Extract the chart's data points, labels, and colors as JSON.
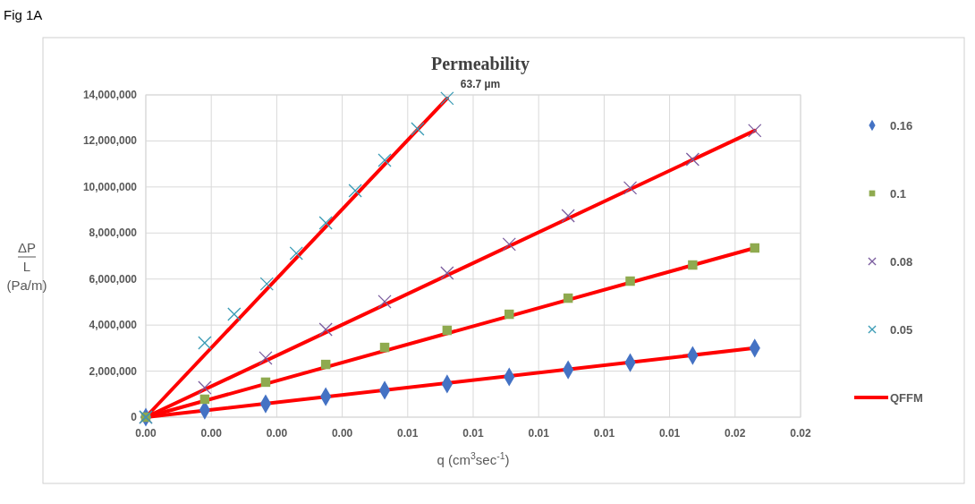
{
  "chart_data": {
    "type": "scatter",
    "title": "Permeability",
    "subtitle": "63.7 µm",
    "xlabel": "q (cm$^{3}$sec$^{-1}$)",
    "ylabel": "ΔP\nL\n(Pa/m)",
    "annotations": [
      "Fig 1A"
    ],
    "xlim": [
      0,
      0.0166667
    ],
    "ylim": [
      0,
      14000000
    ],
    "xticks": [
      {
        "value": 0,
        "label": "0.00"
      },
      {
        "value": 0.0016667,
        "label": "0.00"
      },
      {
        "value": 0.0033333,
        "label": "0.00"
      },
      {
        "value": 0.005,
        "label": "0.00"
      },
      {
        "value": 0.0066667,
        "label": "0.01"
      },
      {
        "value": 0.0083333,
        "label": "0.01"
      },
      {
        "value": 0.01,
        "label": "0.01"
      },
      {
        "value": 0.0116667,
        "label": "0.01"
      },
      {
        "value": 0.0133333,
        "label": "0.01"
      },
      {
        "value": 0.015,
        "label": "0.02"
      },
      {
        "value": 0.0166667,
        "label": "0.02"
      }
    ],
    "yticks": [
      0,
      {
        "value": 2000000,
        "label": "2,000,000"
      },
      {
        "value": 4000000,
        "label": "4,000,000"
      },
      {
        "value": 6000000,
        "label": "6,000,000"
      },
      {
        "value": 8000000,
        "label": "8,000,000"
      },
      {
        "value": 10000000,
        "label": "10,000,000"
      },
      {
        "value": 12000000,
        "label": "12,000,000"
      },
      {
        "value": 14000000,
        "label": "14,000,000"
      }
    ],
    "grid": true,
    "legend": "right",
    "series": [
      {
        "name": "0.16",
        "marker": "diamond",
        "color": "#4472c4",
        "x": [
          0,
          0.0015,
          0.00305,
          0.00458,
          0.00608,
          0.00767,
          0.00925,
          0.01075,
          0.01233,
          0.01392,
          0.0155
        ],
        "values": [
          0,
          310000,
          580000,
          890000,
          1170000,
          1440000,
          1750000,
          2060000,
          2370000,
          2680000,
          3000000
        ]
      },
      {
        "name": "0.1",
        "marker": "square",
        "color": "#8faa4f",
        "x": [
          0,
          0.0015,
          0.00305,
          0.00458,
          0.00608,
          0.00767,
          0.00925,
          0.01075,
          0.01233,
          0.01392,
          0.0155
        ],
        "values": [
          0,
          780000,
          1520000,
          2290000,
          3030000,
          3770000,
          4470000,
          5170000,
          5910000,
          6610000,
          7350000
        ]
      },
      {
        "name": "0.08",
        "marker": "cross",
        "color": "#7a5c9e",
        "x": [
          0,
          0.0015,
          0.00305,
          0.00458,
          0.00608,
          0.00767,
          0.00925,
          0.01075,
          0.01233,
          0.01392,
          0.0155
        ],
        "values": [
          0,
          1280000,
          2570000,
          3810000,
          5020000,
          6260000,
          7510000,
          8750000,
          9960000,
          11200000,
          12450000
        ]
      },
      {
        "name": "0.05",
        "marker": "cross",
        "color": "#3a9bb5",
        "x": [
          0,
          0.0015,
          0.00225,
          0.00308,
          0.00383,
          0.00458,
          0.00533,
          0.00608,
          0.00692,
          0.00767
        ],
        "values": [
          0,
          3230000,
          4470000,
          5790000,
          7120000,
          8440000,
          9840000,
          11160000,
          12520000,
          13850000
        ]
      },
      {
        "name": "QFFM",
        "type": "line",
        "color": "#ff0000",
        "x": [
          0,
          0.0155
        ],
        "values": [
          0,
          3000000
        ]
      },
      {
        "type": "line",
        "color": "#ff0000",
        "x": [
          0,
          0.0155
        ],
        "values": [
          0,
          7350000
        ]
      },
      {
        "type": "line",
        "color": "#ff0000",
        "x": [
          0,
          0.0155
        ],
        "values": [
          0,
          12450000
        ]
      },
      {
        "type": "line",
        "color": "#ff0000",
        "x": [
          0,
          0.00767
        ],
        "values": [
          0,
          13850000
        ]
      }
    ]
  }
}
